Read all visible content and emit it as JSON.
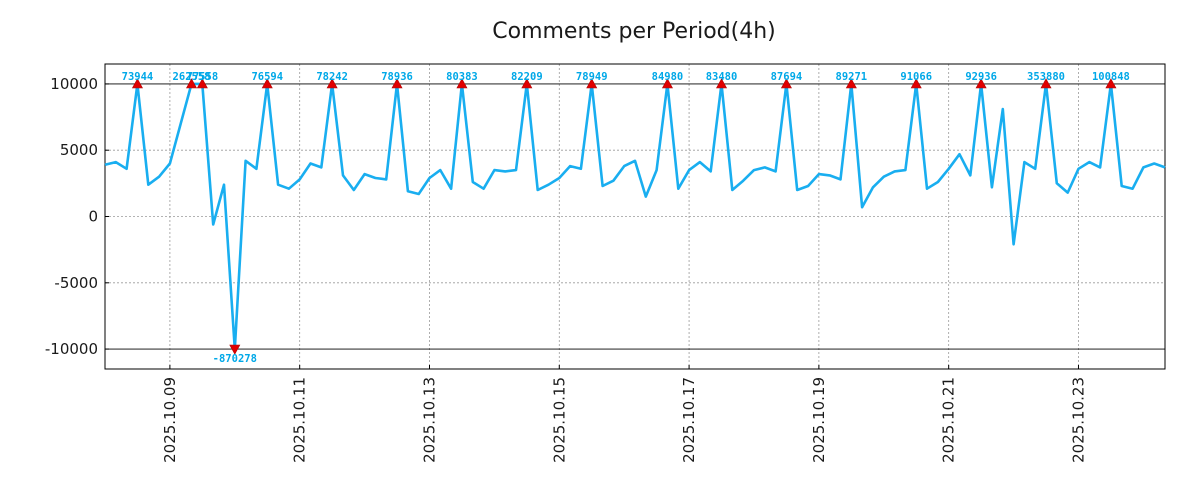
{
  "chart_data": {
    "type": "line",
    "title": "Comments per Period(4h)",
    "xlabel": "",
    "ylabel": "",
    "ylim": [
      -11500,
      11500
    ],
    "yticks": [
      10000,
      5000,
      0,
      -5000,
      -10000
    ],
    "ytick_labels": [
      "10000",
      "5000",
      "0",
      "-5000",
      "-10000"
    ],
    "clip_value": 10000,
    "x_start": "2025.10.08 00:00",
    "x_step_hours": 4,
    "xticks": [
      "2025.10.09",
      "2025.10.11",
      "2025.10.13",
      "2025.10.15",
      "2025.10.17",
      "2025.10.19",
      "2025.10.21",
      "2025.10.23"
    ],
    "xtick_index": [
      6,
      18,
      30,
      42,
      54,
      66,
      78,
      90
    ],
    "grid": true,
    "series": [
      {
        "name": "Comments",
        "color": "#19aef0",
        "values": [
          3900,
          4100,
          3600,
          10000,
          2400,
          3000,
          4000,
          7000,
          10000,
          10000,
          -600,
          2400,
          -10000,
          4200,
          3600,
          10000,
          2400,
          2100,
          2800,
          4000,
          3700,
          10000,
          3100,
          2000,
          3200,
          2900,
          2800,
          10000,
          1900,
          1700,
          2900,
          3500,
          2100,
          10000,
          2600,
          2100,
          3500,
          3400,
          3500,
          10000,
          2000,
          2400,
          2900,
          3800,
          3600,
          10000,
          2300,
          2700,
          3800,
          4200,
          1500,
          3500,
          10000,
          2100,
          3500,
          4100,
          3400,
          10000,
          2000,
          2700,
          3500,
          3700,
          3400,
          10000,
          2000,
          2300,
          3200,
          3100,
          2800,
          10000,
          700,
          2200,
          3000,
          3400,
          3500,
          10000,
          2100,
          2600,
          3600,
          4700,
          3100,
          10000,
          2200,
          8100,
          -2100,
          4100,
          3600,
          10000,
          2500,
          1800,
          3600,
          4100,
          3700,
          10000,
          2300,
          2100,
          3700,
          4000,
          3700
        ]
      }
    ],
    "annotations": [
      {
        "index": 3,
        "label": "73944",
        "marker": "up"
      },
      {
        "index": 8,
        "label": "262558",
        "marker": "up"
      },
      {
        "index": 9,
        "label": "77558",
        "marker": "up"
      },
      {
        "index": 12,
        "label": "-870278",
        "marker": "down"
      },
      {
        "index": 15,
        "label": "76594",
        "marker": "up"
      },
      {
        "index": 21,
        "label": "78242",
        "marker": "up"
      },
      {
        "index": 27,
        "label": "78936",
        "marker": "up"
      },
      {
        "index": 33,
        "label": "80383",
        "marker": "up"
      },
      {
        "index": 39,
        "label": "82209",
        "marker": "up"
      },
      {
        "index": 45,
        "label": "78949",
        "marker": "up"
      },
      {
        "index": 52,
        "label": "84980",
        "marker": "up"
      },
      {
        "index": 57,
        "label": "83480",
        "marker": "up"
      },
      {
        "index": 63,
        "label": "87694",
        "marker": "up"
      },
      {
        "index": 69,
        "label": "89271",
        "marker": "up"
      },
      {
        "index": 75,
        "label": "91066",
        "marker": "up"
      },
      {
        "index": 81,
        "label": "92936",
        "marker": "up"
      },
      {
        "index": 87,
        "label": "353880",
        "marker": "up"
      },
      {
        "index": 93,
        "label": "100848",
        "marker": "up"
      }
    ]
  }
}
